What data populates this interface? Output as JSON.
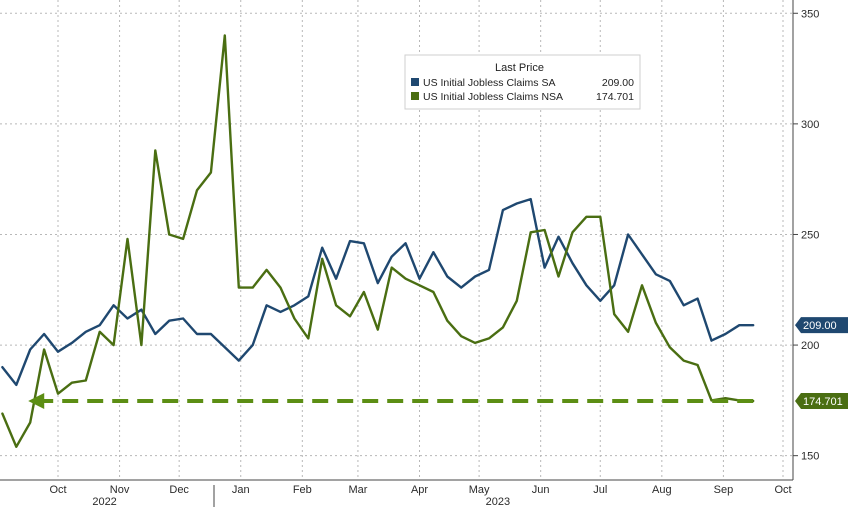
{
  "chart_data": {
    "type": "line",
    "title": "",
    "xlabel": "",
    "ylabel": "",
    "ylim": [
      139,
      356
    ],
    "y_axis_position": "right",
    "grid": true,
    "legend": {
      "placement": "top-center",
      "title": "Last Price",
      "entries": [
        {
          "name": "US Initial Jobless Claims SA",
          "value": "209.00",
          "color": "#1f4870"
        },
        {
          "name": "US Initial Jobless Claims NSA",
          "value": "174.701",
          "color": "#4a6e12"
        }
      ]
    },
    "x_ticks": [
      {
        "label": "Oct",
        "date": "2022-10-15"
      },
      {
        "label": "Nov",
        "date": "2022-11-15"
      },
      {
        "label": "Dec",
        "date": "2022-12-15"
      },
      {
        "label": "Jan",
        "date": "2023-01-15"
      },
      {
        "label": "Feb",
        "date": "2023-02-15"
      },
      {
        "label": "Mar",
        "date": "2023-03-15"
      },
      {
        "label": "Apr",
        "date": "2023-04-15"
      },
      {
        "label": "May",
        "date": "2023-05-15"
      },
      {
        "label": "Jun",
        "date": "2023-06-15"
      },
      {
        "label": "Jul",
        "date": "2023-07-15"
      },
      {
        "label": "Aug",
        "date": "2023-08-15"
      },
      {
        "label": "Sep",
        "date": "2023-09-15"
      },
      {
        "label": "Oct",
        "date": "2023-10-15"
      }
    ],
    "year_labels": [
      {
        "label": "2022",
        "date": "2022-11-15"
      },
      {
        "label": "2023",
        "date": "2023-06-01"
      }
    ],
    "y_ticks": [
      150,
      200,
      250,
      300,
      350
    ],
    "series": [
      {
        "name": "US Initial Jobless Claims SA",
        "color": "#1f4870",
        "last_value_label": "209.00",
        "x": [
          "2022-09-17",
          "2022-09-24",
          "2022-10-01",
          "2022-10-08",
          "2022-10-15",
          "2022-10-22",
          "2022-10-29",
          "2022-11-05",
          "2022-11-12",
          "2022-11-19",
          "2022-11-26",
          "2022-12-03",
          "2022-12-10",
          "2022-12-17",
          "2022-12-24",
          "2022-12-31",
          "2023-01-07",
          "2023-01-14",
          "2023-01-21",
          "2023-01-28",
          "2023-02-04",
          "2023-02-11",
          "2023-02-18",
          "2023-02-25",
          "2023-03-04",
          "2023-03-11",
          "2023-03-18",
          "2023-03-25",
          "2023-04-01",
          "2023-04-08",
          "2023-04-15",
          "2023-04-22",
          "2023-04-29",
          "2023-05-06",
          "2023-05-13",
          "2023-05-20",
          "2023-05-27",
          "2023-06-03",
          "2023-06-10",
          "2023-06-17",
          "2023-06-24",
          "2023-07-01",
          "2023-07-08",
          "2023-07-15",
          "2023-07-22",
          "2023-07-29",
          "2023-08-05",
          "2023-08-12",
          "2023-08-19",
          "2023-08-26",
          "2023-09-02",
          "2023-09-09",
          "2023-09-16",
          "2023-09-23",
          "2023-09-30"
        ],
        "values": [
          190,
          182,
          198,
          205,
          197,
          201,
          206,
          209,
          218,
          212,
          216,
          205,
          211,
          212,
          205,
          205,
          199,
          193,
          200,
          218,
          215,
          218,
          222,
          244,
          230,
          247,
          246,
          228,
          240,
          246,
          230,
          242,
          231,
          226,
          231,
          234,
          261,
          264,
          266,
          235,
          249,
          237,
          227,
          220,
          227,
          250,
          241,
          232,
          229,
          218,
          221,
          202,
          205,
          209,
          209
        ]
      },
      {
        "name": "US Initial Jobless Claims NSA",
        "color": "#4a6e12",
        "last_value_label": "174.701",
        "x": [
          "2022-09-17",
          "2022-09-24",
          "2022-10-01",
          "2022-10-08",
          "2022-10-15",
          "2022-10-22",
          "2022-10-29",
          "2022-11-05",
          "2022-11-12",
          "2022-11-19",
          "2022-11-26",
          "2022-12-03",
          "2022-12-10",
          "2022-12-17",
          "2022-12-24",
          "2022-12-31",
          "2023-01-07",
          "2023-01-14",
          "2023-01-21",
          "2023-01-28",
          "2023-02-04",
          "2023-02-11",
          "2023-02-18",
          "2023-02-25",
          "2023-03-04",
          "2023-03-11",
          "2023-03-18",
          "2023-03-25",
          "2023-04-01",
          "2023-04-08",
          "2023-04-15",
          "2023-04-22",
          "2023-04-29",
          "2023-05-06",
          "2023-05-13",
          "2023-05-20",
          "2023-05-27",
          "2023-06-03",
          "2023-06-10",
          "2023-06-17",
          "2023-06-24",
          "2023-07-01",
          "2023-07-08",
          "2023-07-15",
          "2023-07-22",
          "2023-07-29",
          "2023-08-05",
          "2023-08-12",
          "2023-08-19",
          "2023-08-26",
          "2023-09-02",
          "2023-09-09",
          "2023-09-16",
          "2023-09-23",
          "2023-09-30"
        ],
        "values": [
          169,
          154,
          165,
          198,
          178,
          183,
          184,
          206,
          200,
          248,
          200,
          288,
          250,
          248,
          270,
          278,
          340,
          226,
          226,
          234,
          226,
          212,
          203,
          239,
          218,
          213,
          224,
          207,
          235,
          230,
          227,
          224,
          211,
          204,
          201,
          203,
          208,
          220,
          251,
          252,
          231,
          251,
          258,
          258,
          214,
          206,
          227,
          210,
          199,
          193,
          191,
          175,
          176,
          175,
          174.701
        ]
      }
    ],
    "annotations": [
      {
        "type": "dashed-arrow",
        "color": "#5c8e14",
        "from_date": "2023-09-30",
        "to_date": "2022-09-30",
        "value": 174.701,
        "direction": "left"
      }
    ]
  }
}
